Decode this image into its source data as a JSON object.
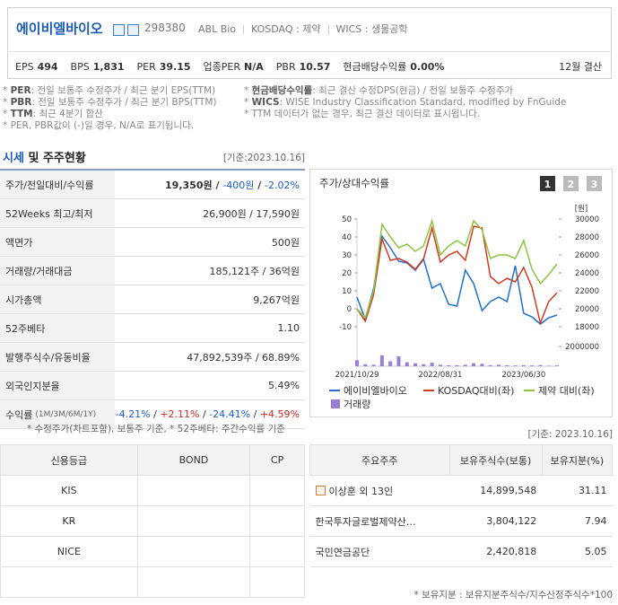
{
  "header": {
    "name": "에이비엘바이오",
    "code": "298380",
    "sub": [
      "ABL Bio",
      "KOSDAQ : 제약",
      "WICS : 생물공학"
    ],
    "metrics": [
      {
        "label": "EPS",
        "value": "494"
      },
      {
        "label": "BPS",
        "value": "1,831"
      },
      {
        "label": "PER",
        "value": "39.15"
      },
      {
        "label": "업종PER",
        "value": "N/A"
      },
      {
        "label": "PBR",
        "value": "10.57"
      },
      {
        "label": "현금배당수익률",
        "value": "0.00%"
      }
    ],
    "fiscal": "12월 결산"
  },
  "notes": {
    "left": [
      {
        "bullet": "*",
        "term": "PER",
        "text": ": 전일 보통주 수정주가 / 최근 분기 EPS(TTM)"
      },
      {
        "bullet": "*",
        "term": "PBR",
        "text": ": 전일 보통주 수정주가 / 최근 분기 BPS(TTM)"
      },
      {
        "bullet": "*",
        "term": "TTM",
        "text": ": 최근 4분기 합산"
      },
      {
        "bullet": "*",
        "text": "PER, PBR값이 (-)일 경우, N/A로 표기됩니다."
      }
    ],
    "right": [
      {
        "bullet": "*",
        "term": "현금배당수익률",
        "text": ": 최근 결산 수정DPS(현금) / 전일 보통주 수정주가"
      },
      {
        "bullet": "*",
        "term": "WICS",
        "text": ": WISE Industry Classification Standard, modified by FnGuide"
      },
      {
        "bullet": "*",
        "text": "TTM 데이터가 없는 경우, 최근 결산 데이터로 표시됩니다."
      }
    ]
  },
  "section": {
    "title_a": "시세",
    "title_b": "및 주주현황",
    "date": "[기준:2023.10.16]"
  },
  "market": {
    "rows": [
      {
        "label": "주가/전일대비/수익률",
        "value": [
          "19,350원",
          " / ",
          "-400원",
          " / ",
          "-2.02%"
        ]
      },
      {
        "label": "52Weeks 최고/최저",
        "value": [
          "26,900원 / 17,590원"
        ]
      },
      {
        "label": "액면가",
        "value": [
          "500원"
        ]
      },
      {
        "label": "거래량/거래대금",
        "value": [
          "185,121주 / 36억원"
        ]
      },
      {
        "label": "시가총액",
        "value": [
          "9,267억원"
        ]
      },
      {
        "label": "52주베타",
        "value": [
          "1.10"
        ]
      },
      {
        "label": "발행주식수/유동비율",
        "value": [
          "47,892,539주 / 68.89%"
        ]
      },
      {
        "label": "외국인지분율",
        "value": [
          "5.49%"
        ]
      },
      {
        "label": "수익률",
        "note": "(1M/3M/6M/1Y)",
        "value": [
          "-4.21%",
          " / ",
          "+2.11%",
          " / ",
          "-24.41%",
          " / ",
          "+4.59%"
        ]
      }
    ],
    "footnote": "* 수정주가(차트포함), 보통주 기준, * 52주베타: 주간수익률 기준"
  },
  "chart_data": {
    "type": "line",
    "title": "주가/상대수익률",
    "buttons": [
      "1",
      "2",
      "3"
    ],
    "y2_unit": "[원]",
    "categories": [
      "2021/10/29",
      null,
      null,
      null,
      null,
      null,
      null,
      null,
      null,
      null,
      "2022/08/31",
      null,
      null,
      null,
      null,
      null,
      null,
      null,
      null,
      null,
      "2023/06/30",
      null,
      null,
      null,
      null
    ],
    "ylim": [
      -10,
      50
    ],
    "yticks": [
      -10,
      0,
      10,
      20,
      30,
      40,
      50
    ],
    "y2lim": [
      18000,
      30000
    ],
    "y2ticks": [
      18000,
      20000,
      22000,
      24000,
      26000,
      28000,
      30000
    ],
    "y3lim": [
      0,
      2000000
    ],
    "y3ticks": [
      2000000
    ],
    "series": [
      {
        "name": "에이비엘바이오",
        "color": "#1f6fd1",
        "axis": "y2",
        "values": [
          21300,
          18800,
          22300,
          28100,
          26800,
          25300,
          25100,
          24300,
          25500,
          22300,
          22800,
          20500,
          20300,
          24300,
          22800,
          19800,
          20800,
          21300,
          20800,
          24800,
          19500,
          19100,
          18300,
          19000,
          19300
        ]
      },
      {
        "name": "KOSDAQ대비(좌)",
        "color": "#d13b1f",
        "axis": "y",
        "values": [
          0,
          -7,
          8,
          39,
          27,
          28,
          26,
          22,
          28,
          45,
          26,
          30,
          32,
          27,
          46,
          45,
          18,
          14,
          17,
          15,
          23,
          12,
          -8,
          4,
          9
        ]
      },
      {
        "name": "제약 대비(좌)",
        "color": "#8cc63f",
        "axis": "y",
        "values": [
          0,
          -5,
          10,
          47,
          40,
          34,
          36,
          32,
          35,
          49,
          30,
          35,
          38,
          35,
          49,
          44,
          28,
          30,
          30,
          28,
          38,
          22,
          14,
          19,
          25
        ]
      },
      {
        "name": "거래량",
        "color": "#9a7fd1",
        "axis": "y3",
        "type": "bar",
        "values": [
          600000,
          200000,
          150000,
          1100000,
          500000,
          1000000,
          400000,
          300000,
          200000,
          350000,
          150000,
          100000,
          100000,
          150000,
          300000,
          250000,
          100000,
          150000,
          100000,
          80000,
          100000,
          80000,
          120000,
          50000,
          80000
        ]
      }
    ]
  },
  "credit": {
    "headers": [
      "신용등급",
      "BOND",
      "CP"
    ],
    "rows": [
      "KIS",
      "KR",
      "NICE"
    ]
  },
  "holders": {
    "date": "[기준: 2023.10.16]",
    "headers": [
      "주요주주",
      "보유주식수(보통)",
      "보유지분(%)"
    ],
    "rows": [
      {
        "name": "이상훈 외 13인",
        "shares": "14,899,548",
        "pct": "31.11"
      },
      {
        "name": "한국투자글로벌제약산…",
        "shares": "3,804,122",
        "pct": "7.94"
      },
      {
        "name": "국민연금공단",
        "shares": "2,420,818",
        "pct": "5.05"
      }
    ],
    "footnote": "* 보유지분 : 보유지분주식수/지수산정주식수*100"
  }
}
